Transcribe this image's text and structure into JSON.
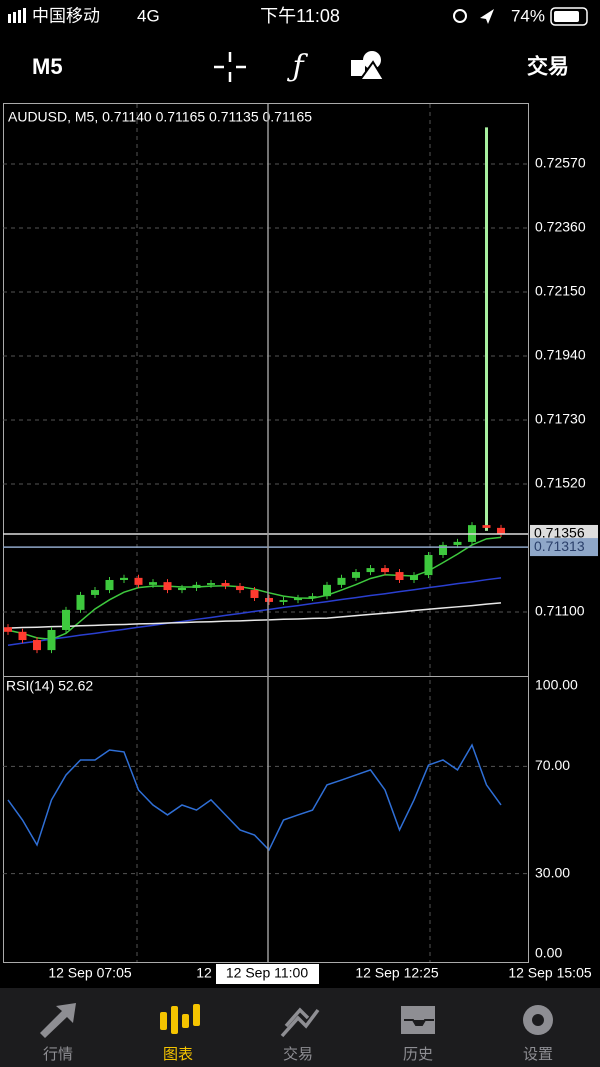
{
  "status_bar": {
    "carrier": "中国移动",
    "network": "4G",
    "time": "下午11:08",
    "battery": "74%"
  },
  "toolbar": {
    "timeframe": "M5",
    "trade": "交易"
  },
  "chart_data": [
    {
      "type": "candlestick",
      "title": "AUDUSD, M5, 0.71140 0.71165 0.71135 0.71165",
      "up_color": "#3ec93e",
      "down_color": "#ff3b30",
      "open": [
        0.7105,
        0.71035,
        0.71008,
        0.70975,
        0.71041,
        0.71107,
        0.71156,
        0.71172,
        0.71205,
        0.71212,
        0.71189,
        0.71198,
        0.71172,
        0.71179,
        0.71189,
        0.71195,
        0.71185,
        0.71172,
        0.71146,
        0.71133,
        0.71139,
        0.71146,
        0.71152,
        0.71189,
        0.71212,
        0.71231,
        0.71244,
        0.71231,
        0.71205,
        0.71221,
        0.71287,
        0.7132,
        0.7133,
        0.71385,
        0.71376
      ],
      "high": [
        0.7106,
        0.71045,
        0.71018,
        0.71051,
        0.71117,
        0.71166,
        0.71182,
        0.71215,
        0.71222,
        0.71222,
        0.71208,
        0.71208,
        0.71189,
        0.71199,
        0.71205,
        0.71205,
        0.71195,
        0.71182,
        0.71156,
        0.71149,
        0.71156,
        0.71162,
        0.71199,
        0.71222,
        0.71241,
        0.71254,
        0.71254,
        0.71241,
        0.71231,
        0.71297,
        0.7133,
        0.7134,
        0.71395,
        0.7269,
        0.71386
      ],
      "low": [
        0.71025,
        0.70998,
        0.70965,
        0.70965,
        0.71031,
        0.71097,
        0.71146,
        0.71162,
        0.71195,
        0.71179,
        0.71179,
        0.71162,
        0.71162,
        0.71169,
        0.71179,
        0.71175,
        0.71162,
        0.71136,
        0.71123,
        0.71123,
        0.71129,
        0.71136,
        0.71142,
        0.71179,
        0.71202,
        0.71221,
        0.71221,
        0.71195,
        0.71195,
        0.71211,
        0.71277,
        0.7131,
        0.7132,
        0.71366,
        0.71346
      ],
      "close": [
        0.71035,
        0.71008,
        0.70975,
        0.71041,
        0.71107,
        0.71156,
        0.71172,
        0.71205,
        0.71212,
        0.71189,
        0.71198,
        0.71172,
        0.71179,
        0.71189,
        0.71195,
        0.71185,
        0.71172,
        0.71146,
        0.71133,
        0.71139,
        0.71146,
        0.71152,
        0.71189,
        0.71212,
        0.71231,
        0.71244,
        0.71231,
        0.71205,
        0.71221,
        0.71287,
        0.7132,
        0.7133,
        0.71385,
        0.71376,
        0.71356
      ],
      "ma": [
        {
          "color": "#3ec93e",
          "values": [
            0.7104,
            0.7103,
            0.71015,
            0.7101,
            0.7103,
            0.7107,
            0.7111,
            0.7114,
            0.71165,
            0.7118,
            0.71185,
            0.71185,
            0.71182,
            0.71182,
            0.71185,
            0.71186,
            0.71183,
            0.71175,
            0.71163,
            0.71152,
            0.71146,
            0.71145,
            0.71155,
            0.71172,
            0.7119,
            0.7121,
            0.71222,
            0.7122,
            0.71218,
            0.71235,
            0.71262,
            0.7129,
            0.7132,
            0.7134,
            0.71345
          ]
        },
        {
          "color": "#2a3fd0",
          "values": [
            0.70991,
            0.70998,
            0.71004,
            0.71011,
            0.71017,
            0.71024,
            0.7103,
            0.71037,
            0.71043,
            0.7105,
            0.71056,
            0.71063,
            0.71069,
            0.71076,
            0.71082,
            0.71089,
            0.71095,
            0.71102,
            0.71108,
            0.71115,
            0.71121,
            0.71128,
            0.71134,
            0.71141,
            0.71147,
            0.71154,
            0.7116,
            0.71167,
            0.71173,
            0.7118,
            0.71186,
            0.71193,
            0.71199,
            0.71206,
            0.71212
          ]
        },
        {
          "color": "#e8e8e8",
          "values": [
            0.71047,
            0.71049,
            0.7105,
            0.71052,
            0.71053,
            0.71055,
            0.71056,
            0.71058,
            0.71059,
            0.71061,
            0.71062,
            0.71064,
            0.71065,
            0.71067,
            0.71068,
            0.7107,
            0.71071,
            0.71073,
            0.71074,
            0.71076,
            0.71077,
            0.71079,
            0.7108,
            0.71084,
            0.71088,
            0.71092,
            0.71096,
            0.711,
            0.71105,
            0.71109,
            0.71113,
            0.71117,
            0.71121,
            0.71126,
            0.7113
          ]
        }
      ],
      "ylim": [
        0.7089,
        0.7277
      ],
      "yticks": [
        {
          "value": 0.7257,
          "label": "0.72570"
        },
        {
          "value": 0.7236,
          "label": "0.72360"
        },
        {
          "value": 0.7215,
          "label": "0.72150"
        },
        {
          "value": 0.7194,
          "label": "0.71940"
        },
        {
          "value": 0.7173,
          "label": "0.71730"
        },
        {
          "value": 0.7152,
          "label": "0.71520"
        },
        {
          "value": 0.711,
          "label": "0.71100"
        }
      ],
      "price_lines": [
        {
          "value": 0.71356,
          "label": "0.71356"
        },
        {
          "value": 0.71313,
          "label": "0.71313"
        }
      ],
      "grid": true
    },
    {
      "type": "line",
      "title": "RSI(14) 52.62",
      "color": "#2f6fd6",
      "values": [
        57.5,
        50.0,
        40.7,
        57.5,
        66.8,
        72.4,
        72.4,
        76.1,
        75.4,
        61.2,
        55.6,
        51.9,
        55.6,
        53.7,
        57.5,
        51.9,
        46.3,
        44.4,
        38.8,
        50.0,
        51.9,
        53.7,
        63.1,
        64.9,
        66.8,
        68.7,
        61.2,
        46.3,
        57.5,
        70.5,
        72.4,
        68.7,
        78.0,
        63.1,
        55.6
      ],
      "ylim": [
        0,
        100
      ],
      "yticks": [
        {
          "value": 100,
          "label": "100.00"
        },
        {
          "value": 70,
          "label": "70.00"
        },
        {
          "value": 30,
          "label": "30.00"
        },
        {
          "value": 0,
          "label": "0.00"
        }
      ],
      "grid": true
    }
  ],
  "x_axis": {
    "labels": [
      "12 Sep 07:05",
      "12",
      "12 Sep 12:25",
      "12 Sep 15:05"
    ],
    "crosshair": "12 Sep 11:00"
  },
  "tab_bar": {
    "items": [
      "行情",
      "图表",
      "交易",
      "历史",
      "设置"
    ]
  }
}
